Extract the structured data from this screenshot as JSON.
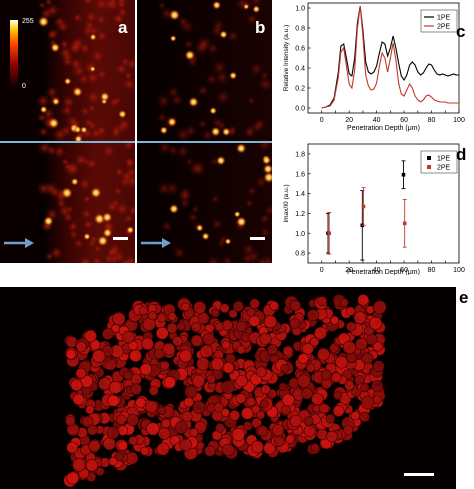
{
  "panels": {
    "a": {
      "label": "a"
    },
    "b": {
      "label": "b"
    },
    "c": {
      "label": "c"
    },
    "d": {
      "label": "d"
    },
    "e": {
      "label": "e"
    }
  },
  "colorbar": {
    "max_label": "255",
    "min_label": "0"
  },
  "colors": {
    "one_pe": "#000000",
    "two_pe": "#c0392b",
    "guide_line": "#7fb7d6",
    "cell_hot": "#ffd36a",
    "cell_red": "#b3140f"
  },
  "chart_data": [
    {
      "type": "line",
      "panel": "c",
      "xlabel": "Penetration Depth (μm)",
      "ylabel": "Relative Intensity (a.u.)",
      "xlim": [
        -10,
        100
      ],
      "ylim": [
        -0.05,
        1.05
      ],
      "xticks": [
        0,
        10,
        20,
        30,
        40,
        50,
        60,
        70,
        80,
        90,
        100
      ],
      "yticks": [
        "0.0",
        "0.2",
        "0.4",
        "0.6",
        "0.8",
        "1.0"
      ],
      "legend_position": "top-right",
      "series": [
        {
          "name": "1PE",
          "color": "#000000",
          "x": [
            0,
            3,
            6,
            9,
            12,
            14,
            16,
            18,
            20,
            22,
            24,
            26,
            28,
            30,
            32,
            34,
            36,
            38,
            40,
            42,
            44,
            46,
            48,
            50,
            52,
            54,
            56,
            58,
            60,
            62,
            64,
            66,
            68,
            70,
            72,
            74,
            76,
            78,
            80,
            82,
            84,
            86,
            88,
            90,
            92,
            94,
            96,
            98,
            100
          ],
          "y": [
            0.0,
            0.01,
            0.03,
            0.1,
            0.35,
            0.62,
            0.64,
            0.5,
            0.34,
            0.32,
            0.5,
            0.85,
            1.02,
            0.78,
            0.46,
            0.36,
            0.34,
            0.36,
            0.42,
            0.55,
            0.66,
            0.64,
            0.52,
            0.6,
            0.72,
            0.6,
            0.45,
            0.32,
            0.28,
            0.33,
            0.43,
            0.46,
            0.43,
            0.36,
            0.33,
            0.35,
            0.4,
            0.44,
            0.43,
            0.38,
            0.34,
            0.33,
            0.34,
            0.33,
            0.32,
            0.33,
            0.34,
            0.33,
            0.33
          ]
        },
        {
          "name": "2PE",
          "color": "#c0392b",
          "x": [
            0,
            3,
            6,
            9,
            12,
            14,
            16,
            18,
            20,
            22,
            24,
            26,
            28,
            30,
            32,
            34,
            36,
            38,
            40,
            42,
            44,
            46,
            48,
            50,
            52,
            54,
            56,
            58,
            60,
            62,
            64,
            66,
            68,
            70,
            72,
            74,
            76,
            78,
            80,
            82,
            84,
            86,
            88,
            90,
            92,
            94,
            96,
            98,
            100
          ],
          "y": [
            0.0,
            0.01,
            0.02,
            0.08,
            0.3,
            0.56,
            0.6,
            0.42,
            0.24,
            0.2,
            0.38,
            0.8,
            1.02,
            0.72,
            0.33,
            0.22,
            0.18,
            0.19,
            0.25,
            0.42,
            0.55,
            0.5,
            0.36,
            0.5,
            0.65,
            0.48,
            0.25,
            0.14,
            0.12,
            0.18,
            0.24,
            0.2,
            0.12,
            0.08,
            0.06,
            0.08,
            0.12,
            0.13,
            0.11,
            0.08,
            0.07,
            0.06,
            0.06,
            0.06,
            0.05,
            0.05,
            0.05,
            0.05,
            0.05
          ]
        }
      ]
    },
    {
      "type": "scatter",
      "panel": "d",
      "xlabel": "Penetration Depth (μm)",
      "ylabel": "Imax/I0 (a.u.)",
      "xlim": [
        -10,
        100
      ],
      "ylim": [
        0.7,
        1.9
      ],
      "xticks": [
        0,
        10,
        20,
        30,
        40,
        50,
        60,
        70,
        80,
        90,
        100
      ],
      "yticks": [
        "0.8",
        "1.0",
        "1.2",
        "1.4",
        "1.6",
        "1.8"
      ],
      "legend_position": "top-right",
      "series": [
        {
          "name": "1PE",
          "color": "#000000",
          "x": [
            5,
            30,
            60
          ],
          "y": [
            1.0,
            1.08,
            1.59
          ],
          "err": [
            0.2,
            0.35,
            0.14
          ]
        },
        {
          "name": "2PE",
          "color": "#c0392b",
          "x": [
            5,
            30,
            60
          ],
          "y": [
            1.0,
            1.27,
            1.1
          ],
          "err": [
            0.21,
            0.19,
            0.24
          ]
        }
      ]
    }
  ]
}
